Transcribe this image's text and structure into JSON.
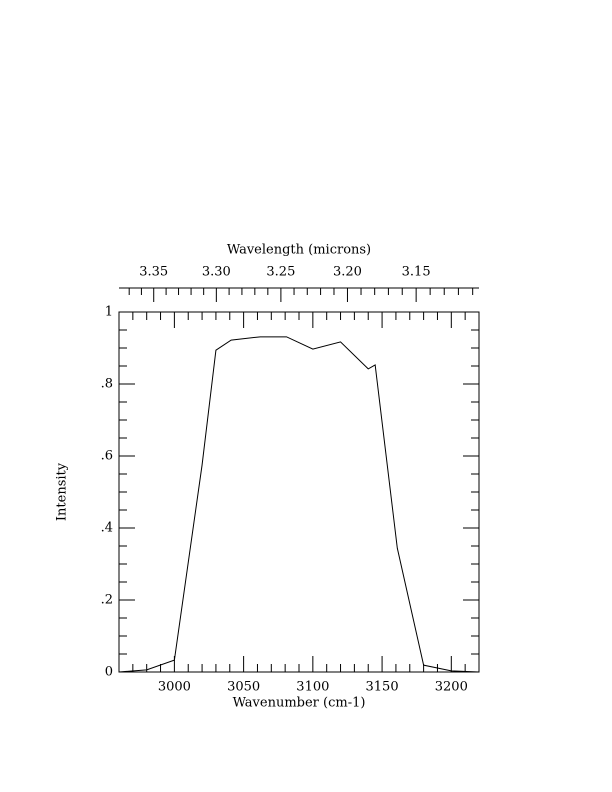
{
  "chart_data": {
    "type": "line",
    "xlabel": "Wavenumber (cm-1)",
    "ylabel": "Intensity",
    "x2label": "Wavelength (microns)",
    "x": [
      2960,
      2980,
      3000,
      3020,
      3030,
      3041,
      3062,
      3081,
      3100,
      3120,
      3140,
      3145,
      3161,
      3180,
      3200,
      3220
    ],
    "series": [
      {
        "color": "#000000",
        "values": [
          0,
          0.006,
          0.033,
          0.575,
          0.894,
          0.922,
          0.931,
          0.931,
          0.897,
          0.917,
          0.842,
          0.853,
          0.344,
          0.019,
          0.003,
          0
        ]
      }
    ],
    "xlim": [
      2960,
      3220
    ],
    "ylim": [
      0,
      1
    ],
    "xticks": [
      3000,
      3050,
      3100,
      3150,
      3200
    ],
    "xminor": [
      2970,
      2980,
      2990,
      3010,
      3020,
      3030,
      3040,
      3060,
      3070,
      3080,
      3090,
      3110,
      3120,
      3130,
      3140,
      3160,
      3170,
      3180,
      3190,
      3210
    ],
    "yticks": [
      0,
      {
        "value": 0.2,
        "label": ".2"
      },
      {
        "value": 0.4,
        "label": ".4"
      },
      {
        "value": 0.6,
        "label": ".6"
      },
      {
        "value": 0.8,
        "label": ".8"
      },
      1
    ],
    "yminor": [
      0.05,
      0.1,
      0.15,
      0.25,
      0.3,
      0.35,
      0.45,
      0.5,
      0.55,
      0.65,
      0.7,
      0.75,
      0.85,
      0.9,
      0.95
    ],
    "x2ticks": [
      3.35,
      {
        "value": 3.3,
        "label": "3.30"
      },
      3.25,
      {
        "value": 3.2,
        "label": "3.20"
      },
      3.15
    ],
    "x2minor": [
      3.37,
      3.36,
      3.34,
      3.33,
      3.32,
      3.31,
      3.29,
      3.28,
      3.27,
      3.26,
      3.24,
      3.23,
      3.22,
      3.21,
      3.19,
      3.18,
      3.17,
      3.16,
      3.14,
      3.13,
      3.12,
      3.11
    ]
  }
}
